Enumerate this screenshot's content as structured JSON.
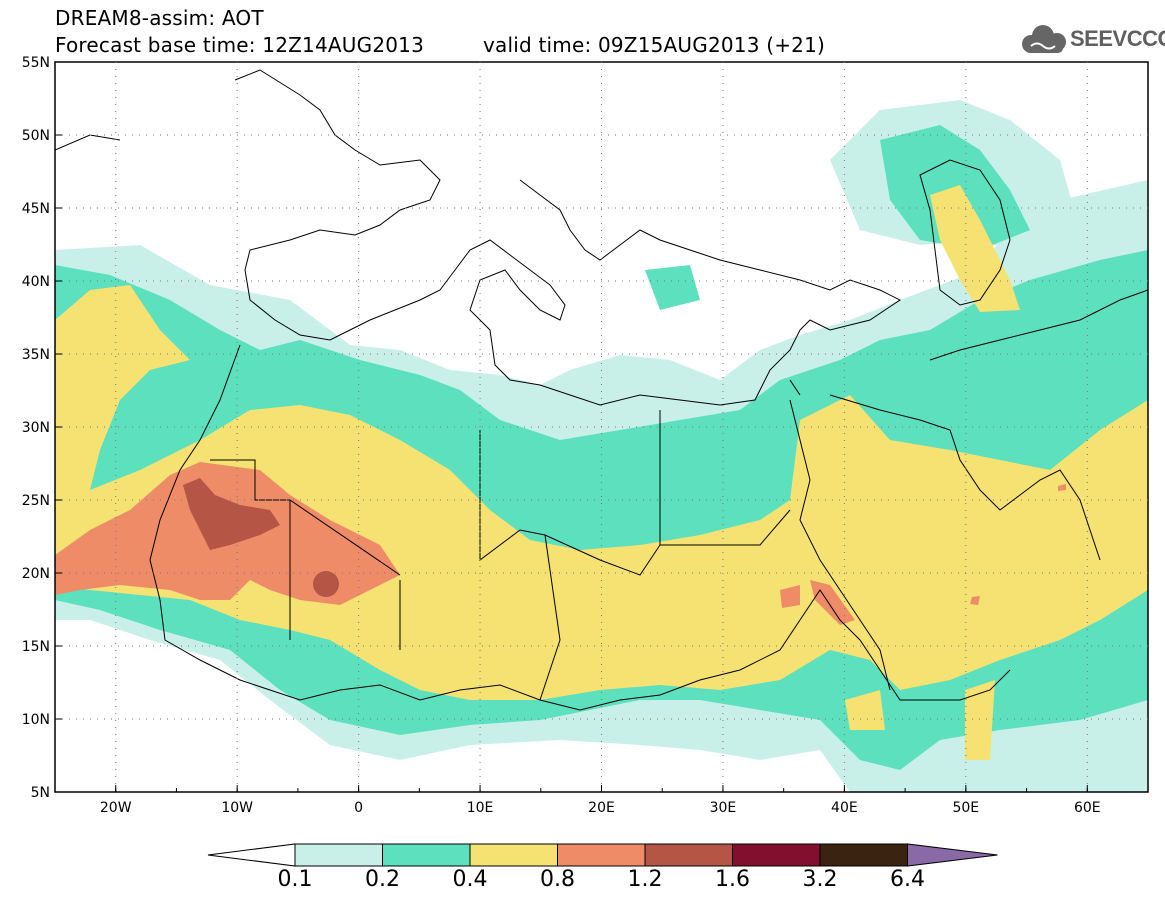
{
  "header": {
    "title": "DREAM8-assim: AOT",
    "base_time": "Forecast base time: 12Z14AUG2013",
    "valid_time": "valid time: 09Z15AUG2013 (+21)"
  },
  "logo": {
    "text": "SEEVCCC",
    "icon": "cloud-icon"
  },
  "map": {
    "lon_range": [
      -25,
      65
    ],
    "lat_range": [
      5,
      55
    ],
    "lon_ticks": [
      "20W",
      "10W",
      "0",
      "10E",
      "20E",
      "30E",
      "40E",
      "50E",
      "60E"
    ],
    "lat_ticks": [
      "55N",
      "50N",
      "45N",
      "40N",
      "35N",
      "30N",
      "25N",
      "20N",
      "15N",
      "10N",
      "5N"
    ]
  },
  "legend": {
    "colors": [
      "#c8f0e8",
      "#5ce0be",
      "#f5e272",
      "#ee8c68",
      "#b45546",
      "#820f2d",
      "#3a2311",
      "#8a6aa6"
    ],
    "labels": [
      "0.1",
      "0.2",
      "0.4",
      "0.8",
      "1.2",
      "1.6",
      "3.2",
      "6.4"
    ]
  }
}
